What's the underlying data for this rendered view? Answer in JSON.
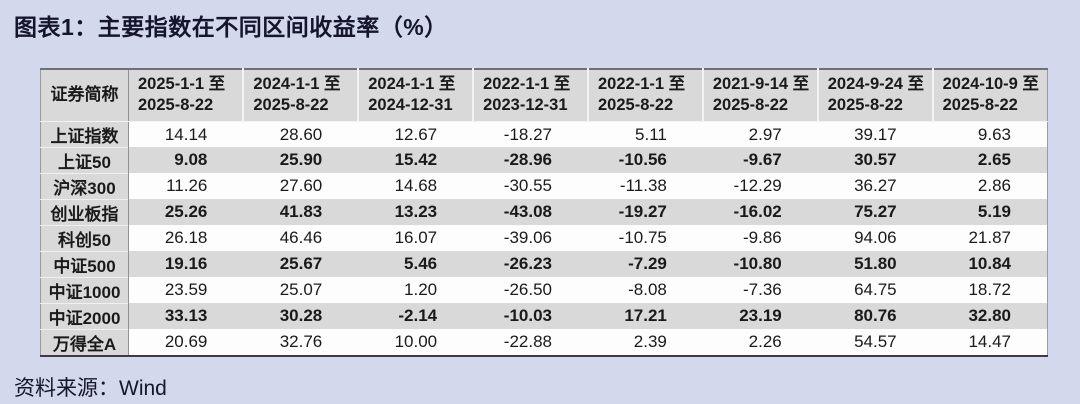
{
  "title": "图表1：主要指数在不同区间收益率（%）",
  "source": "资料来源：Wind",
  "colors": {
    "page_bg": "#d3d8ed",
    "stripe_gray": "#d9d9d9",
    "table_bg": "#fdfdfd",
    "text": "#1a1a1a",
    "title_text": "#15152e"
  },
  "chart_data": {
    "type": "table",
    "title": "图表1：主要指数在不同区间收益率（%）",
    "corner_header": "证券简称",
    "columns": [
      {
        "line1": "2025-1-1 至",
        "line2": "2025-8-22"
      },
      {
        "line1": "2024-1-1 至",
        "line2": "2025-8-22"
      },
      {
        "line1": "2024-1-1 至",
        "line2": "2024-12-31"
      },
      {
        "line1": "2022-1-1 至",
        "line2": "2023-12-31"
      },
      {
        "line1": "2022-1-1 至",
        "line2": "2025-8-22"
      },
      {
        "line1": "2021-9-14 至",
        "line2": "2025-8-22"
      },
      {
        "line1": "2024-9-24 至",
        "line2": "2025-8-22"
      },
      {
        "line1": "2024-10-9 至",
        "line2": "2025-8-22"
      }
    ],
    "rows": [
      {
        "name": "上证指数",
        "values": [
          "14.14",
          "28.60",
          "12.67",
          "-18.27",
          "5.11",
          "2.97",
          "39.17",
          "9.63"
        ]
      },
      {
        "name": "上证50",
        "values": [
          "9.08",
          "25.90",
          "15.42",
          "-28.96",
          "-10.56",
          "-9.67",
          "30.57",
          "2.65"
        ]
      },
      {
        "name": "沪深300",
        "values": [
          "11.26",
          "27.60",
          "14.68",
          "-30.55",
          "-11.38",
          "-12.29",
          "36.27",
          "2.86"
        ]
      },
      {
        "name": "创业板指",
        "values": [
          "25.26",
          "41.83",
          "13.23",
          "-43.08",
          "-19.27",
          "-16.02",
          "75.27",
          "5.19"
        ]
      },
      {
        "name": "科创50",
        "values": [
          "26.18",
          "46.46",
          "16.07",
          "-39.06",
          "-10.75",
          "-9.86",
          "94.06",
          "21.87"
        ]
      },
      {
        "name": "中证500",
        "values": [
          "19.16",
          "25.67",
          "5.46",
          "-26.23",
          "-7.29",
          "-10.80",
          "51.80",
          "10.84"
        ]
      },
      {
        "name": "中证1000",
        "values": [
          "23.59",
          "25.07",
          "1.20",
          "-26.50",
          "-8.08",
          "-7.36",
          "64.75",
          "18.72"
        ]
      },
      {
        "name": "中证2000",
        "values": [
          "33.13",
          "30.28",
          "-2.14",
          "-10.03",
          "17.21",
          "23.19",
          "80.76",
          "32.80"
        ]
      },
      {
        "name": "万得全A",
        "values": [
          "20.69",
          "32.76",
          "10.00",
          "-22.88",
          "2.39",
          "2.26",
          "54.57",
          "14.47"
        ]
      }
    ]
  }
}
